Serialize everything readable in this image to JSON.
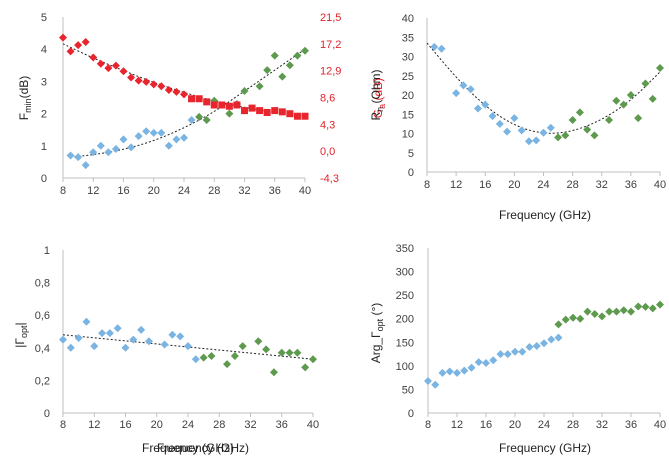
{
  "colors": {
    "blue": "#7ab4e2",
    "green": "#5e9a4e",
    "red": "#e8242c",
    "fit": "#222222",
    "axis": "#bfbfbf",
    "text": "#404040"
  },
  "chart_data": [
    {
      "id": "fmin_ga",
      "type": "scatter",
      "xlabel": "Frequency  (GHz)",
      "ylabel": "F_min (dB)",
      "y2label": "G_a (dB)",
      "xlim": [
        8,
        40
      ],
      "ylim": [
        0,
        5
      ],
      "y2lim": [
        -4.3,
        21.5
      ],
      "xticks": [
        "8",
        "12",
        "16",
        "20",
        "24",
        "28",
        "32",
        "36",
        "40"
      ],
      "yticks": [
        "0",
        "1",
        "2",
        "3",
        "4",
        "5"
      ],
      "y2ticks": [
        "-4,3",
        "0,0",
        "4,3",
        "8,6",
        "12,9",
        "17,2",
        "21,5"
      ],
      "series": [
        {
          "color": "blue",
          "marker": "diamond",
          "axis": "y",
          "x": [
            9,
            10,
            11,
            12,
            13,
            14,
            15,
            16,
            17,
            18,
            19,
            20,
            21,
            22,
            23,
            24,
            25
          ],
          "y": [
            0.7,
            0.65,
            0.4,
            0.8,
            1.0,
            0.8,
            0.9,
            1.2,
            0.95,
            1.3,
            1.45,
            1.4,
            1.4,
            1.0,
            1.2,
            1.25,
            1.8
          ]
        },
        {
          "color": "green",
          "marker": "diamond",
          "axis": "y",
          "x": [
            26,
            27,
            28,
            30,
            31,
            32,
            34,
            35,
            36,
            37,
            38,
            39,
            40
          ],
          "y": [
            1.9,
            1.8,
            2.4,
            2.0,
            2.3,
            2.7,
            2.85,
            3.35,
            3.8,
            3.15,
            3.5,
            3.8,
            3.95
          ]
        },
        {
          "color": "red",
          "marker": "diamond",
          "axis": "y2",
          "x": [
            8,
            9,
            10,
            11,
            12,
            13,
            14,
            15,
            16,
            17,
            18,
            19,
            20,
            21,
            22,
            23,
            24
          ],
          "y": [
            18.2,
            16.0,
            17.0,
            17.5,
            15.0,
            14.0,
            13.3,
            13.7,
            12.8,
            11.8,
            11.3,
            11.1,
            10.7,
            10.4,
            9.8,
            9.5,
            9.1
          ]
        },
        {
          "color": "red",
          "marker": "square",
          "axis": "y2",
          "x": [
            25,
            26,
            27,
            28,
            29,
            30,
            31,
            32,
            33,
            34,
            35,
            36,
            37,
            38,
            39,
            40
          ],
          "y": [
            8.4,
            8.4,
            7.9,
            7.4,
            7.4,
            7.2,
            7.4,
            6.5,
            6.9,
            6.5,
            6.2,
            6.5,
            6.3,
            6.0,
            5.6,
            5.6
          ]
        }
      ],
      "fits": [
        {
          "axis": "y",
          "x": [
            9,
            12,
            16,
            20,
            24,
            28,
            32,
            36,
            40
          ],
          "y": [
            0.65,
            0.72,
            0.88,
            1.15,
            1.55,
            2.05,
            2.7,
            3.35,
            4.0
          ]
        },
        {
          "axis": "y2",
          "x": [
            8,
            12,
            16,
            20,
            24,
            28,
            32,
            36,
            40
          ],
          "y": [
            17.2,
            14.9,
            12.9,
            11.0,
            9.4,
            8.0,
            7.0,
            6.2,
            5.7
          ]
        }
      ]
    },
    {
      "id": "rn",
      "type": "scatter",
      "xlabel": "Frequency  (GHz)",
      "ylabel": "R_n (Ohm)",
      "xlim": [
        8,
        40
      ],
      "ylim": [
        0,
        40
      ],
      "xticks": [
        "8",
        "12",
        "16",
        "20",
        "24",
        "28",
        "32",
        "36",
        "40"
      ],
      "yticks": [
        "0",
        "5",
        "10",
        "15",
        "20",
        "25",
        "30",
        "35",
        "40"
      ],
      "series": [
        {
          "color": "blue",
          "marker": "diamond",
          "x": [
            9,
            10,
            12,
            13,
            14,
            15,
            16,
            17,
            18,
            19,
            20,
            21,
            22,
            23,
            24,
            25
          ],
          "y": [
            32.5,
            32,
            20.5,
            22.5,
            21.5,
            16.5,
            17.5,
            14.5,
            12.5,
            10.5,
            14,
            10.8,
            8.0,
            8.2,
            10.2,
            11.5
          ]
        },
        {
          "color": "green",
          "marker": "diamond",
          "x": [
            26,
            27,
            28,
            29,
            30,
            31,
            33,
            34,
            35,
            36,
            37,
            38,
            39,
            40
          ],
          "y": [
            9.0,
            9.5,
            13.5,
            15.5,
            11.0,
            9.5,
            13.5,
            18.5,
            17.5,
            20.0,
            14.0,
            23.0,
            19.0,
            27.0
          ]
        }
      ],
      "fits": [
        {
          "x": [
            8,
            12,
            16,
            20,
            24,
            28,
            32,
            36,
            40
          ],
          "y": [
            33.5,
            24.5,
            17.0,
            12.0,
            9.8,
            10.5,
            13.5,
            18.5,
            26.0
          ]
        }
      ]
    },
    {
      "id": "gamma_mag",
      "type": "scatter",
      "xlabel": "Frequency  (GHz)",
      "ylabel": "|Γ_opt|",
      "xlim": [
        8,
        40
      ],
      "ylim": [
        0,
        1
      ],
      "xticks": [
        "8",
        "12",
        "16",
        "20",
        "24",
        "28",
        "32",
        "36",
        "40"
      ],
      "yticks": [
        "0",
        "0,2",
        "0,4",
        "0,6",
        "0,8",
        "1"
      ],
      "series": [
        {
          "color": "blue",
          "marker": "diamond",
          "x": [
            8,
            9,
            10,
            11,
            12,
            13,
            14,
            15,
            16,
            17,
            18,
            19,
            21,
            22,
            23,
            24,
            25
          ],
          "y": [
            0.45,
            0.4,
            0.46,
            0.56,
            0.41,
            0.49,
            0.49,
            0.52,
            0.4,
            0.45,
            0.51,
            0.44,
            0.42,
            0.48,
            0.47,
            0.41,
            0.33
          ]
        },
        {
          "color": "green",
          "marker": "diamond",
          "x": [
            26,
            27,
            29,
            30,
            31,
            33,
            34,
            35,
            36,
            37,
            38,
            39,
            40
          ],
          "y": [
            0.34,
            0.35,
            0.3,
            0.35,
            0.41,
            0.44,
            0.39,
            0.25,
            0.37,
            0.37,
            0.37,
            0.28,
            0.33
          ]
        }
      ],
      "fits": [
        {
          "x": [
            8,
            40
          ],
          "y": [
            0.48,
            0.33
          ]
        }
      ]
    },
    {
      "id": "gamma_arg",
      "type": "scatter",
      "xlabel": "Frequency  (GHz)",
      "ylabel": "Arg_Γ_opt (°)",
      "xlim": [
        8,
        40
      ],
      "ylim": [
        0,
        350
      ],
      "xticks": [
        "8",
        "12",
        "16",
        "20",
        "24",
        "28",
        "32",
        "36",
        "40"
      ],
      "yticks": [
        "0",
        "50",
        "100",
        "150",
        "200",
        "250",
        "300",
        "350"
      ],
      "series": [
        {
          "color": "blue",
          "marker": "diamond",
          "x": [
            8,
            9,
            10,
            11,
            12,
            13,
            14,
            15,
            16,
            17,
            18,
            19,
            20,
            21,
            22,
            23,
            24,
            25,
            26
          ],
          "y": [
            68,
            60,
            85,
            88,
            85,
            90,
            96,
            108,
            106,
            112,
            125,
            125,
            130,
            130,
            140,
            142,
            148,
            156,
            160
          ]
        },
        {
          "color": "green",
          "marker": "diamond",
          "x": [
            26,
            27,
            28,
            29,
            30,
            31,
            32,
            33,
            34,
            35,
            36,
            37,
            38,
            39,
            40
          ],
          "y": [
            188,
            198,
            202,
            200,
            215,
            210,
            205,
            215,
            215,
            218,
            215,
            226,
            225,
            222,
            230
          ]
        }
      ],
      "fits": []
    }
  ]
}
